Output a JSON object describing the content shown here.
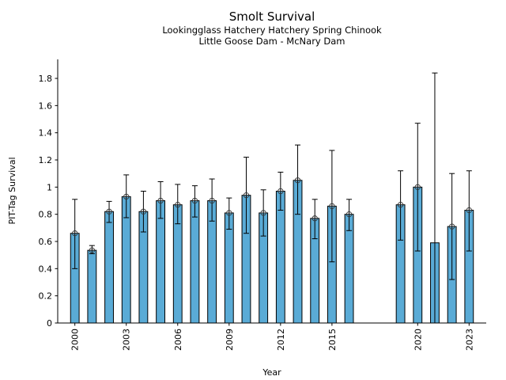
{
  "chart_data": {
    "type": "bar",
    "title": "Smolt Survival",
    "subtitle": [
      "Lookingglass Hatchery Hatchery Spring Chinook",
      "Little Goose Dam - McNary Dam"
    ],
    "xlabel": "Year",
    "ylabel": "PIT-Tag Survival",
    "xlim": [
      1999,
      2024
    ],
    "ylim": [
      0,
      1.94
    ],
    "xticks": [
      2000,
      2003,
      2006,
      2009,
      2012,
      2015,
      2020,
      2023
    ],
    "xtick_labels": [
      "2000",
      "2003",
      "2006",
      "2009",
      "2012",
      "2015",
      "2020",
      "2023"
    ],
    "yticks": [
      0,
      0.2,
      0.4,
      0.6,
      0.8,
      1.0,
      1.2,
      1.4,
      1.6,
      1.8
    ],
    "ytick_labels": [
      "0",
      "0.2",
      "0.4",
      "0.6",
      "0.8",
      "1",
      "1.2",
      "1.4",
      "1.6",
      "1.8"
    ],
    "grid": false,
    "bar_color": "#5aabd6",
    "edge_color": "#000000",
    "series": [
      {
        "name": "Survival",
        "points": [
          {
            "year": 2000,
            "value": 0.66,
            "err_low": 0.4,
            "err_high": 0.91,
            "marker": true
          },
          {
            "year": 2001,
            "value": 0.535,
            "err_low": 0.51,
            "err_high": 0.57,
            "marker": true
          },
          {
            "year": 2002,
            "value": 0.82,
            "err_low": 0.74,
            "err_high": 0.895,
            "marker": true
          },
          {
            "year": 2003,
            "value": 0.93,
            "err_low": 0.775,
            "err_high": 1.09,
            "marker": true
          },
          {
            "year": 2004,
            "value": 0.82,
            "err_low": 0.67,
            "err_high": 0.97,
            "marker": true
          },
          {
            "year": 2005,
            "value": 0.9,
            "err_low": 0.77,
            "err_high": 1.04,
            "marker": true
          },
          {
            "year": 2006,
            "value": 0.87,
            "err_low": 0.73,
            "err_high": 1.02,
            "marker": true
          },
          {
            "year": 2007,
            "value": 0.9,
            "err_low": 0.78,
            "err_high": 1.01,
            "marker": true
          },
          {
            "year": 2008,
            "value": 0.9,
            "err_low": 0.75,
            "err_high": 1.06,
            "marker": true
          },
          {
            "year": 2009,
            "value": 0.81,
            "err_low": 0.69,
            "err_high": 0.92,
            "marker": true
          },
          {
            "year": 2010,
            "value": 0.94,
            "err_low": 0.66,
            "err_high": 1.22,
            "marker": true
          },
          {
            "year": 2011,
            "value": 0.81,
            "err_low": 0.64,
            "err_high": 0.98,
            "marker": true
          },
          {
            "year": 2012,
            "value": 0.97,
            "err_low": 0.83,
            "err_high": 1.11,
            "marker": true
          },
          {
            "year": 2013,
            "value": 1.05,
            "err_low": 0.8,
            "err_high": 1.31,
            "marker": true
          },
          {
            "year": 2014,
            "value": 0.77,
            "err_low": 0.62,
            "err_high": 0.91,
            "marker": true
          },
          {
            "year": 2015,
            "value": 0.86,
            "err_low": 0.45,
            "err_high": 1.27,
            "marker": true
          },
          {
            "year": 2016,
            "value": 0.8,
            "err_low": 0.68,
            "err_high": 0.91,
            "marker": true
          },
          {
            "year": 2019,
            "value": 0.87,
            "err_low": 0.61,
            "err_high": 1.12,
            "marker": true
          },
          {
            "year": 2020,
            "value": 1.0,
            "err_low": 0.53,
            "err_high": 1.47,
            "marker": true
          },
          {
            "year": 2021,
            "value": 0.59,
            "err_low": 0.0,
            "err_high": 1.84,
            "marker": false
          },
          {
            "year": 2022,
            "value": 0.71,
            "err_low": 0.32,
            "err_high": 1.1,
            "marker": true
          },
          {
            "year": 2023,
            "value": 0.83,
            "err_low": 0.53,
            "err_high": 1.12,
            "marker": true
          }
        ]
      }
    ]
  }
}
